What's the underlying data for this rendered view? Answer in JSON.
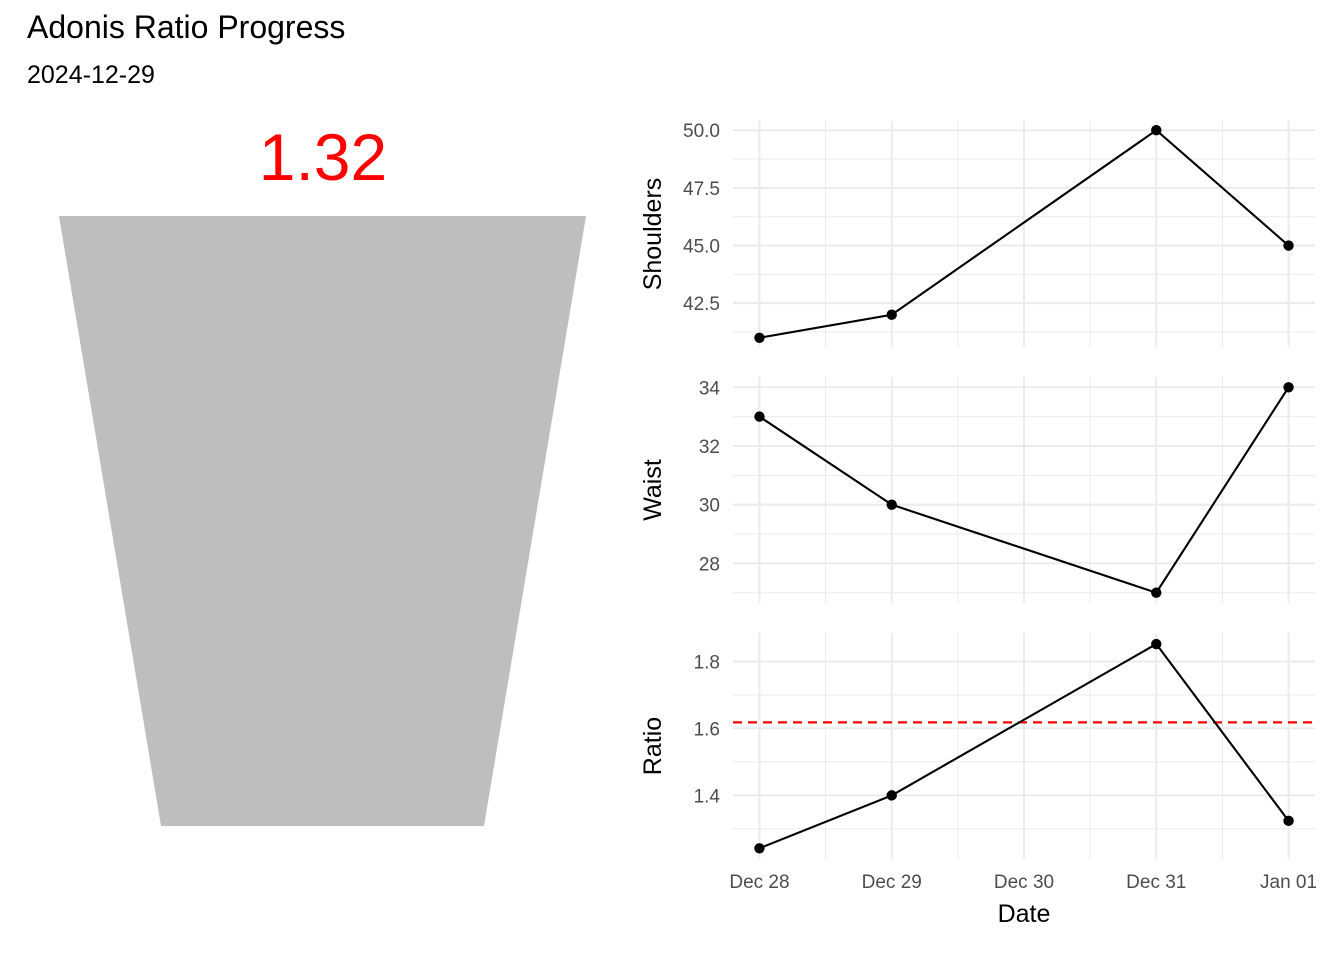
{
  "title": "Adonis Ratio Progress",
  "subtitle": "2024-12-29",
  "ratio_display": {
    "value_label": "1.32",
    "value_color": "#ff0000",
    "shape_color": "#bebebe"
  },
  "chart_data": [
    {
      "type": "line",
      "ylabel": "Shoulders",
      "xlabel": "",
      "x": [
        "2024-12-28",
        "2024-12-29",
        "2024-12-31",
        "2025-01-01"
      ],
      "values": [
        41,
        42,
        50,
        45
      ],
      "ylim": [
        40.6,
        50.4
      ],
      "yticks": [
        42.5,
        45.0,
        47.5,
        50.0
      ],
      "ytick_labels": [
        "42.5",
        "45.0",
        "47.5",
        "50.0"
      ],
      "grid": true
    },
    {
      "type": "line",
      "ylabel": "Waist",
      "xlabel": "",
      "x": [
        "2024-12-28",
        "2024-12-29",
        "2024-12-31",
        "2025-01-01"
      ],
      "values": [
        33,
        30,
        27,
        34
      ],
      "ylim": [
        26.65,
        34.35
      ],
      "yticks": [
        28,
        30,
        32,
        34
      ],
      "ytick_labels": [
        "28",
        "30",
        "32",
        "34"
      ],
      "grid": true
    },
    {
      "type": "line",
      "ylabel": "Ratio",
      "xlabel": "Date",
      "x": [
        "2024-12-28",
        "2024-12-29",
        "2024-12-31",
        "2025-01-01"
      ],
      "values": [
        1.242,
        1.4,
        1.852,
        1.324
      ],
      "ylim": [
        1.21,
        1.885
      ],
      "yticks": [
        1.4,
        1.6,
        1.8
      ],
      "ytick_labels": [
        "1.4",
        "1.6",
        "1.8"
      ],
      "reference_line": {
        "y": 1.618,
        "color": "#ff0000",
        "style": "dashed"
      },
      "grid": true
    }
  ],
  "x_axis": {
    "ticks": [
      "2024-12-28",
      "2024-12-29",
      "2024-12-30",
      "2024-12-31",
      "2025-01-01"
    ],
    "tick_labels": [
      "Dec 28",
      "Dec 29",
      "Dec 30",
      "Dec 31",
      "Jan 01"
    ],
    "range": [
      "2024-12-27T19:12",
      "2025-01-01T04:48"
    ]
  }
}
